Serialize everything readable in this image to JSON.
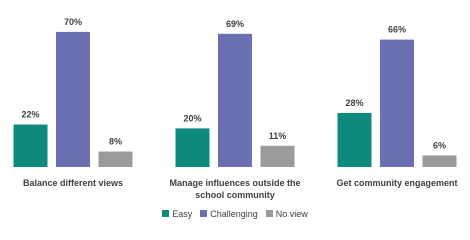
{
  "chart_data": {
    "type": "bar",
    "categories": [
      "Balance different views",
      "Manage influences outside the school community",
      "Get community engagement"
    ],
    "series": [
      {
        "name": "Easy",
        "color": "#0e8a7c",
        "values": [
          22,
          20,
          28
        ],
        "value_labels": [
          "22%",
          "20%",
          "28%"
        ]
      },
      {
        "name": "Challenging",
        "color": "#6b70b3",
        "values": [
          70,
          69,
          66
        ],
        "value_labels": [
          "70%",
          "69%",
          "66%"
        ]
      },
      {
        "name": "No view",
        "color": "#9b9b9b",
        "values": [
          8,
          11,
          6
        ],
        "value_labels": [
          "8%",
          "11%",
          "6%"
        ]
      }
    ],
    "legend": "bottom"
  }
}
